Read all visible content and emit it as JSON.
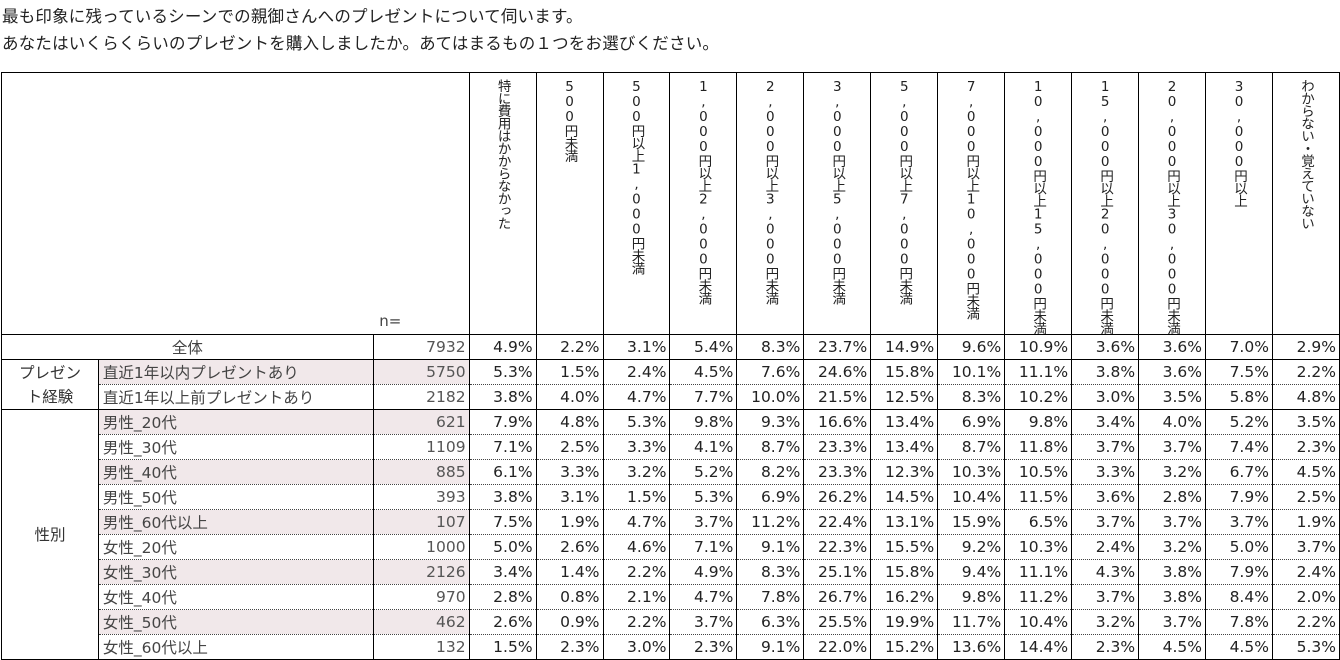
{
  "question": {
    "line1": "最も印象に残っているシーンでの親御さんへのプレゼントについて伺います。",
    "line2": "あなたはいくらくらいのプレゼントを購入しましたか。あてはまるもの１つをお選びください。"
  },
  "table": {
    "n_label": "n=",
    "columns": [
      "特に費用はかからなかった",
      "500円未満",
      "500円以上1,000円未満",
      "1,000円以上2,000円未満",
      "2,000円以上3,000円未満",
      "3,000円以上5,000円未満",
      "5,000円以上7,000円未満",
      "7,000円以上10,000円未満",
      "10,000円以上15,000円未満",
      "15,000円以上20,000円未満",
      "20,000円以上30,000円未満",
      "30,000円以上",
      "わからない・覚えていない"
    ],
    "total": {
      "label": "全体",
      "n": "7932",
      "values": [
        "4.9%",
        "2.2%",
        "3.1%",
        "5.4%",
        "8.3%",
        "23.7%",
        "14.9%",
        "9.6%",
        "10.9%",
        "3.6%",
        "3.6%",
        "7.0%",
        "2.9%"
      ]
    },
    "groups": [
      {
        "name_line1": "プレゼン",
        "name_line2": "ト経験",
        "rows": [
          {
            "label": "直近1年以内プレゼントあり",
            "n": "5750",
            "values": [
              "5.3%",
              "1.5%",
              "2.4%",
              "4.5%",
              "7.6%",
              "24.6%",
              "15.8%",
              "10.1%",
              "11.1%",
              "3.8%",
              "3.6%",
              "7.5%",
              "2.2%"
            ]
          },
          {
            "label": "直近1年以上前プレゼントあり",
            "n": "2182",
            "values": [
              "3.8%",
              "4.0%",
              "4.7%",
              "7.7%",
              "10.0%",
              "21.5%",
              "12.5%",
              "8.3%",
              "10.2%",
              "3.0%",
              "3.5%",
              "5.8%",
              "4.8%"
            ]
          }
        ]
      },
      {
        "name_line1": "性別",
        "name_line2": "",
        "rows": [
          {
            "label": "男性_20代",
            "n": "621",
            "values": [
              "7.9%",
              "4.8%",
              "5.3%",
              "9.8%",
              "9.3%",
              "16.6%",
              "13.4%",
              "6.9%",
              "9.8%",
              "3.4%",
              "4.0%",
              "5.2%",
              "3.5%"
            ]
          },
          {
            "label": "男性_30代",
            "n": "1109",
            "values": [
              "7.1%",
              "2.5%",
              "3.3%",
              "4.1%",
              "8.7%",
              "23.3%",
              "13.4%",
              "8.7%",
              "11.8%",
              "3.7%",
              "3.7%",
              "7.4%",
              "2.3%"
            ]
          },
          {
            "label": "男性_40代",
            "n": "885",
            "values": [
              "6.1%",
              "3.3%",
              "3.2%",
              "5.2%",
              "8.2%",
              "23.3%",
              "12.3%",
              "10.3%",
              "10.5%",
              "3.3%",
              "3.2%",
              "6.7%",
              "4.5%"
            ]
          },
          {
            "label": "男性_50代",
            "n": "393",
            "values": [
              "3.8%",
              "3.1%",
              "1.5%",
              "5.3%",
              "6.9%",
              "26.2%",
              "14.5%",
              "10.4%",
              "11.5%",
              "3.6%",
              "2.8%",
              "7.9%",
              "2.5%"
            ]
          },
          {
            "label": "男性_60代以上",
            "n": "107",
            "values": [
              "7.5%",
              "1.9%",
              "4.7%",
              "3.7%",
              "11.2%",
              "22.4%",
              "13.1%",
              "15.9%",
              "6.5%",
              "3.7%",
              "3.7%",
              "3.7%",
              "1.9%"
            ]
          },
          {
            "label": "女性_20代",
            "n": "1000",
            "values": [
              "5.0%",
              "2.6%",
              "4.6%",
              "7.1%",
              "9.1%",
              "22.3%",
              "15.5%",
              "9.2%",
              "10.3%",
              "2.4%",
              "3.2%",
              "5.0%",
              "3.7%"
            ]
          },
          {
            "label": "女性_30代",
            "n": "2126",
            "values": [
              "3.4%",
              "1.4%",
              "2.2%",
              "4.9%",
              "8.3%",
              "25.1%",
              "15.8%",
              "9.4%",
              "11.1%",
              "4.3%",
              "3.8%",
              "7.9%",
              "2.4%"
            ]
          },
          {
            "label": "女性_40代",
            "n": "970",
            "values": [
              "2.8%",
              "0.8%",
              "2.1%",
              "4.7%",
              "7.8%",
              "26.7%",
              "16.2%",
              "9.8%",
              "11.2%",
              "3.7%",
              "3.8%",
              "8.4%",
              "2.0%"
            ]
          },
          {
            "label": "女性_50代",
            "n": "462",
            "values": [
              "2.6%",
              "0.9%",
              "2.2%",
              "3.7%",
              "6.3%",
              "25.5%",
              "19.9%",
              "11.7%",
              "10.4%",
              "3.2%",
              "3.7%",
              "7.8%",
              "2.2%"
            ]
          },
          {
            "label": "女性_60代以上",
            "n": "132",
            "values": [
              "1.5%",
              "2.3%",
              "3.0%",
              "2.3%",
              "9.1%",
              "22.0%",
              "15.2%",
              "13.6%",
              "14.4%",
              "2.3%",
              "4.5%",
              "4.5%",
              "5.3%"
            ]
          }
        ]
      }
    ]
  },
  "colors": {
    "row_shade": "#f1e8ea",
    "border": "#000000"
  }
}
